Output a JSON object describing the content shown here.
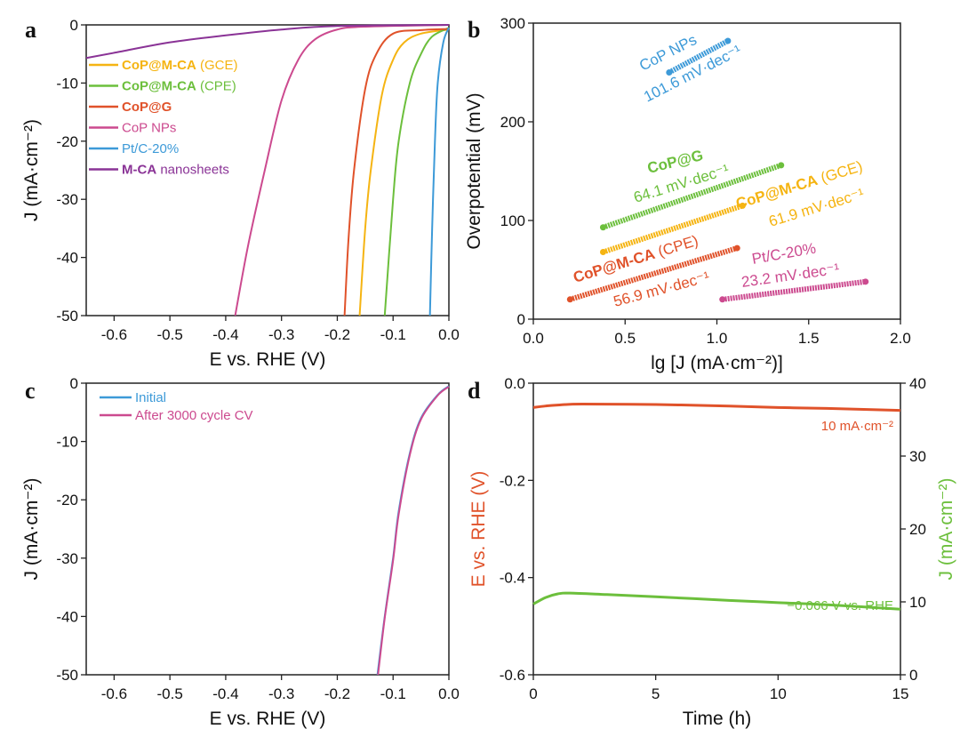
{
  "chart_data": [
    {
      "panel": "a",
      "type": "line",
      "xlabel": "E vs. RHE (V)",
      "ylabel": "J (mA·cm⁻²)",
      "xlim": [
        -0.65,
        0.0
      ],
      "ylim": [
        -50,
        0
      ],
      "xticks": [
        -0.6,
        -0.5,
        -0.4,
        -0.3,
        -0.2,
        -0.1,
        0.0
      ],
      "yticks": [
        0,
        -10,
        -20,
        -30,
        -40,
        -50
      ],
      "legend": "left",
      "series": [
        {
          "name": "CoP@M-CA (GCE)",
          "bold": "CoP@M-CA",
          "rest": " (GCE)",
          "color": "#f5b412",
          "points": [
            [
              0,
              -0.8
            ],
            [
              -0.05,
              -1.5
            ],
            [
              -0.08,
              -3
            ],
            [
              -0.1,
              -6
            ],
            [
              -0.12,
              -12
            ],
            [
              -0.14,
              -25
            ],
            [
              -0.15,
              -35
            ],
            [
              -0.16,
              -50
            ]
          ]
        },
        {
          "name": "CoP@M-CA (CPE)",
          "bold": "CoP@M-CA",
          "rest": " (CPE)",
          "color": "#6cbf3c",
          "points": [
            [
              0,
              -0.5
            ],
            [
              -0.03,
              -2
            ],
            [
              -0.05,
              -5
            ],
            [
              -0.07,
              -10
            ],
            [
              -0.09,
              -20
            ],
            [
              -0.1,
              -30
            ],
            [
              -0.115,
              -50
            ]
          ]
        },
        {
          "name": "CoP@G",
          "bold": "CoP@G",
          "rest": "",
          "color": "#e0522a",
          "points": [
            [
              0,
              -0.7
            ],
            [
              -0.05,
              -0.9
            ],
            [
              -0.1,
              -1.5
            ],
            [
              -0.13,
              -5
            ],
            [
              -0.15,
              -11
            ],
            [
              -0.17,
              -25
            ],
            [
              -0.18,
              -37
            ],
            [
              -0.187,
              -50
            ]
          ]
        },
        {
          "name": "CoP NPs",
          "bold": "",
          "rest": "CoP NPs",
          "color": "#cc4a8f",
          "points": [
            [
              0,
              0
            ],
            [
              -0.15,
              -0.3
            ],
            [
              -0.2,
              -0.8
            ],
            [
              -0.24,
              -2.5
            ],
            [
              -0.27,
              -6
            ],
            [
              -0.3,
              -13
            ],
            [
              -0.33,
              -25
            ],
            [
              -0.36,
              -38
            ],
            [
              -0.383,
              -50
            ]
          ]
        },
        {
          "name": "Pt/C-20%",
          "bold": "",
          "rest": "Pt/C-20%",
          "color": "#3d9ad8",
          "points": [
            [
              0,
              -0.5
            ],
            [
              -0.01,
              -3
            ],
            [
              -0.02,
              -10
            ],
            [
              -0.025,
              -20
            ],
            [
              -0.03,
              -35
            ],
            [
              -0.034,
              -50
            ]
          ]
        },
        {
          "name": "M-CA nanosheets",
          "bold": "M-CA",
          "rest": " nanosheets",
          "color": "#8a3396",
          "points": [
            [
              0,
              0
            ],
            [
              -0.2,
              -0.2
            ],
            [
              -0.3,
              -0.8
            ],
            [
              -0.4,
              -1.8
            ],
            [
              -0.5,
              -3
            ],
            [
              -0.6,
              -4.8
            ],
            [
              -0.65,
              -5.7
            ]
          ]
        }
      ]
    },
    {
      "panel": "b",
      "type": "scatter",
      "xlabel": "lg [J (mA·cm⁻²)]",
      "ylabel": "Overpotential (mV)",
      "xlim": [
        0.0,
        2.0
      ],
      "ylim": [
        0,
        300
      ],
      "xticks": [
        0.0,
        0.5,
        1.0,
        1.5,
        2.0
      ],
      "yticks": [
        0,
        100,
        200,
        300
      ],
      "series": [
        {
          "name": "CoP NPs",
          "slope": "101.6 mV·dec⁻¹",
          "color": "#3d9ad8",
          "points": [
            [
              0.74,
              250
            ],
            [
              1.06,
              282
            ]
          ]
        },
        {
          "name": "CoP@G",
          "slope": "64.1 mV·dec⁻¹",
          "color": "#6cbf3c",
          "points": [
            [
              0.38,
              93
            ],
            [
              1.35,
              156
            ]
          ]
        },
        {
          "name": "CoP@M-CA (GCE)",
          "slope": "61.9 mV·dec⁻¹",
          "color": "#f5b412",
          "points": [
            [
              0.38,
              68
            ],
            [
              1.14,
              115
            ]
          ]
        },
        {
          "name": "CoP@M-CA (CPE)",
          "slope": "56.9 mV·dec⁻¹",
          "color": "#e0522a",
          "points": [
            [
              0.2,
              20
            ],
            [
              1.11,
              72
            ]
          ]
        },
        {
          "name": "Pt/C-20%",
          "slope": "23.2 mV·dec⁻¹",
          "color": "#cc4a8f",
          "points": [
            [
              1.03,
              20
            ],
            [
              1.81,
              38
            ]
          ]
        }
      ]
    },
    {
      "panel": "c",
      "type": "line",
      "xlabel": "E vs. RHE (V)",
      "ylabel": "J (mA·cm⁻²)",
      "xlim": [
        -0.65,
        0.0
      ],
      "ylim": [
        -50,
        0
      ],
      "xticks": [
        -0.6,
        -0.5,
        -0.4,
        -0.3,
        -0.2,
        -0.1,
        0.0
      ],
      "yticks": [
        0,
        -10,
        -20,
        -30,
        -40,
        -50
      ],
      "legend": "top-left",
      "series": [
        {
          "name": "Initial",
          "color": "#3d9ad8",
          "points": [
            [
              0,
              -0.5
            ],
            [
              -0.02,
              -2
            ],
            [
              -0.05,
              -6
            ],
            [
              -0.07,
              -12
            ],
            [
              -0.09,
              -22
            ],
            [
              -0.1,
              -30
            ],
            [
              -0.115,
              -40
            ],
            [
              -0.128,
              -50
            ]
          ]
        },
        {
          "name": "After 3000 cycle CV",
          "color": "#cc4a8f",
          "points": [
            [
              0,
              -0.6
            ],
            [
              -0.02,
              -2.1
            ],
            [
              -0.05,
              -6.2
            ],
            [
              -0.07,
              -12.3
            ],
            [
              -0.09,
              -22.5
            ],
            [
              -0.1,
              -30.4
            ],
            [
              -0.115,
              -40.3
            ],
            [
              -0.127,
              -50
            ]
          ]
        }
      ]
    },
    {
      "panel": "d",
      "type": "line",
      "xlabel": "Time (h)",
      "ylabel": "E vs. RHE (V)",
      "ylabel_right": "J (mA·cm⁻²)",
      "xlim": [
        0,
        15
      ],
      "ylim": [
        -0.6,
        0.0
      ],
      "ylim_right": [
        0,
        40
      ],
      "xticks": [
        0,
        5,
        10,
        15
      ],
      "yticks": [
        0.0,
        -0.2,
        -0.4,
        -0.6
      ],
      "yticks_right": [
        0,
        10,
        20,
        30,
        40
      ],
      "series": [
        {
          "name": "10 mA·cm⁻²",
          "axis": "left",
          "color": "#e0522a",
          "points": [
            [
              0,
              -0.05
            ],
            [
              0.5,
              -0.047
            ],
            [
              1,
              -0.045
            ],
            [
              2,
              -0.043
            ],
            [
              5,
              -0.044
            ],
            [
              8,
              -0.047
            ],
            [
              10,
              -0.05
            ],
            [
              12,
              -0.052
            ],
            [
              15,
              -0.056
            ]
          ]
        },
        {
          "name": "−0.066 V vs. RHE",
          "axis": "right",
          "color": "#6cbf3c",
          "points": [
            [
              0,
              9.7
            ],
            [
              0.5,
              10.6
            ],
            [
              1,
              11.1
            ],
            [
              1.5,
              11.2
            ],
            [
              3,
              11.0
            ],
            [
              5,
              10.7
            ],
            [
              8,
              10.2
            ],
            [
              10,
              9.9
            ],
            [
              12,
              9.6
            ],
            [
              15,
              9.0
            ]
          ]
        }
      ]
    }
  ],
  "panel_labels": [
    "a",
    "b",
    "c",
    "d"
  ]
}
